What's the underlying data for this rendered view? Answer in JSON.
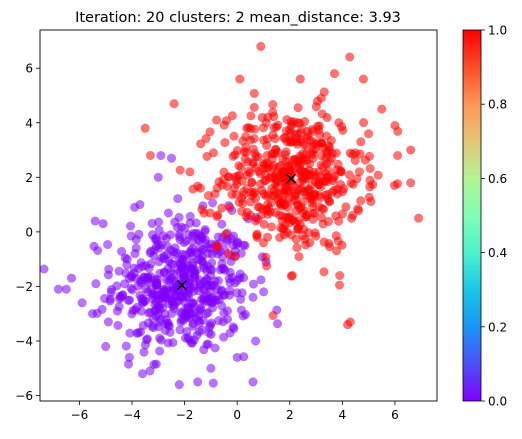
{
  "chart_data": {
    "type": "scatter",
    "title": "Iteration: 20 clusters: 2 mean_distance: 3.93",
    "xlabel": "",
    "ylabel": "",
    "xlim": [
      -7.5,
      7.6
    ],
    "ylim": [
      -6.2,
      7.4
    ],
    "x_ticks": [
      -6,
      -4,
      -2,
      0,
      2,
      4,
      6
    ],
    "y_ticks": [
      -6,
      -4,
      -2,
      0,
      2,
      4,
      6
    ],
    "grid": false,
    "series": [
      {
        "cluster_value": 0.0,
        "color": "#8000ff",
        "center": [
          -2.1,
          -1.95
        ],
        "spread": [
          1.3,
          1.25
        ],
        "count": 520,
        "sample_points": [
          [
            -6.8,
            -2.1
          ],
          [
            -6.5,
            -2.1
          ],
          [
            -6.3,
            -1.7
          ],
          [
            -5.9,
            -2.6
          ],
          [
            -5.4,
            0.4
          ],
          [
            -5.1,
            0.3
          ],
          [
            -3.6,
            -5.2
          ],
          [
            -3.9,
            0.9
          ],
          [
            -3.7,
            1.0
          ],
          [
            -2.9,
            2.8
          ],
          [
            -2.5,
            2.7
          ],
          [
            -3.0,
            2.0
          ],
          [
            -2.2,
            -5.6
          ],
          [
            -1.5,
            -5.5
          ],
          [
            -1.0,
            -5.0
          ],
          [
            0.0,
            -4.6
          ],
          [
            0.6,
            -5.5
          ],
          [
            -4.1,
            -4.6
          ],
          [
            -5.0,
            -4.2
          ],
          [
            -5.5,
            -3.0
          ],
          [
            -4.9,
            -3.3
          ],
          [
            0.7,
            -4.0
          ],
          [
            0.6,
            -2.4
          ],
          [
            1.1,
            -1.1
          ],
          [
            0.3,
            -0.5
          ]
        ]
      },
      {
        "cluster_value": 1.0,
        "color": "#ff0000",
        "center": [
          2.05,
          1.95
        ],
        "spread": [
          1.35,
          1.3
        ],
        "count": 520,
        "sample_points": [
          [
            0.9,
            6.8
          ],
          [
            3.7,
            5.8
          ],
          [
            2.4,
            5.6
          ],
          [
            4.8,
            5.6
          ],
          [
            5.5,
            4.5
          ],
          [
            6.0,
            3.9
          ],
          [
            6.6,
            3.0
          ],
          [
            6.9,
            0.5
          ],
          [
            6.6,
            1.8
          ],
          [
            6.1,
            2.8
          ],
          [
            -3.5,
            3.8
          ],
          [
            -2.4,
            4.7
          ],
          [
            -1.4,
            1.6
          ],
          [
            -1.8,
            2.2
          ],
          [
            -3.3,
            2.8
          ],
          [
            4.3,
            -3.3
          ],
          [
            4.2,
            -3.4
          ],
          [
            3.9,
            -1.6
          ],
          [
            2.1,
            -1.6
          ],
          [
            1.0,
            -0.4
          ],
          [
            0.7,
            0.4
          ],
          [
            -0.9,
            2.9
          ],
          [
            5.0,
            3.6
          ],
          [
            0.1,
            5.6
          ],
          [
            4.7,
            3.3
          ]
        ]
      }
    ],
    "centroids": [
      [
        -2.1,
        -1.95
      ],
      [
        2.05,
        1.95
      ]
    ],
    "colorbar": {
      "ticks": [
        "0.0",
        "0.2",
        "0.4",
        "0.6",
        "0.8",
        "1.0"
      ],
      "colormap": "rainbow"
    }
  }
}
